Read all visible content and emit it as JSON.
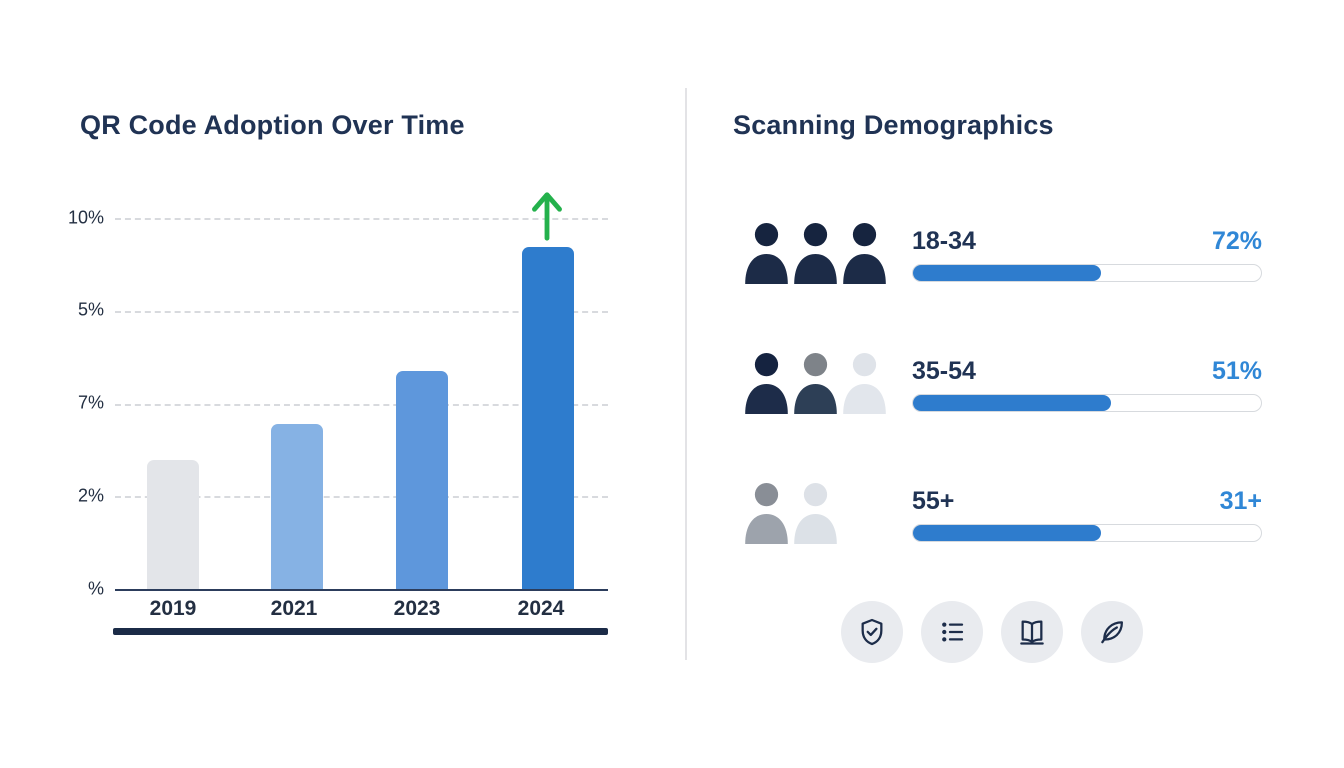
{
  "left_panel": {
    "title": "QR Code Adoption Over Time"
  },
  "chart_data": {
    "type": "bar",
    "title": "QR Code Adoption Over Time",
    "categories": [
      "2019",
      "2021",
      "2023",
      "2024"
    ],
    "y_tick_labels": [
      "10%",
      "5%",
      "7%",
      "2%",
      "%"
    ],
    "estimated_values_pct": [
      3.5,
      4.5,
      5.9,
      9.2
    ],
    "bar_height_fractions": [
      0.348,
      0.445,
      0.588,
      0.922
    ],
    "bar_colors": [
      "#e3e5e9",
      "#86b2e4",
      "#5e97dc",
      "#2e7ccd"
    ],
    "grid": "dashed-horizontal",
    "legend": "none",
    "annotation": "green up arrow above 2024 bar"
  },
  "right_panel": {
    "title": "Scanning Demographics",
    "rows": [
      {
        "label": "18-34",
        "value": "72%",
        "fill_pct": 54,
        "persons": [
          {
            "head": "#16243f",
            "body": "#1c2b47"
          },
          {
            "head": "#16243f",
            "body": "#1c2b47"
          },
          {
            "head": "#16243f",
            "body": "#1c2b47"
          }
        ]
      },
      {
        "label": "35-54",
        "value": "51%",
        "fill_pct": 57,
        "persons": [
          {
            "head": "#152340",
            "body": "#1d2c49"
          },
          {
            "head": "#7e8389",
            "body": "#2d3f56"
          },
          {
            "head": "#dfe3e9",
            "body": "#e2e6ec"
          }
        ]
      },
      {
        "label": "55+",
        "value": "31+",
        "fill_pct": 54,
        "persons": [
          {
            "head": "#898e96",
            "body": "#9da3ac"
          },
          {
            "head": "#dde1e7",
            "body": "#dce1e7"
          }
        ]
      }
    ],
    "footer_icons": [
      "shield-check",
      "checklist",
      "open-book",
      "leaf"
    ]
  },
  "colors": {
    "title_text": "#203354",
    "axis_text": "#232f42",
    "value_blue": "#3087d6",
    "progress_blue": "#2e7ccd",
    "arrow_green": "#24b14c",
    "gridline": "#d8dade",
    "axis_line": "#2c3d5c",
    "underline_bar": "#1b2b47",
    "divider": "#e3e3e6",
    "icon_circle_bg": "#e9ebef",
    "icon_stroke": "#1d2d4a"
  }
}
